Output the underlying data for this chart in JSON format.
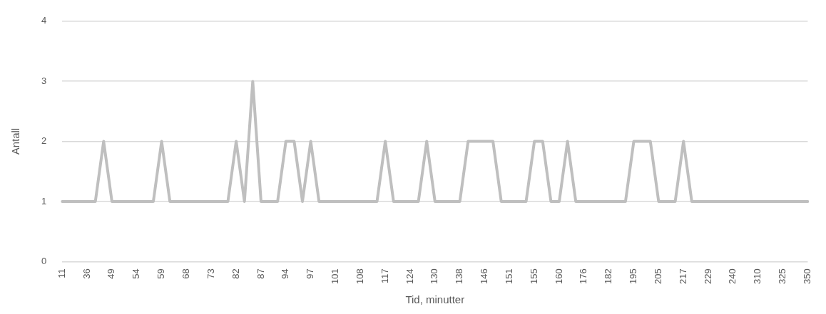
{
  "chart_data": {
    "type": "line",
    "xlabel": "Tid, minutter",
    "ylabel": "Antall",
    "categories": [
      "11",
      null,
      null,
      "36",
      null,
      null,
      "49",
      null,
      null,
      "54",
      null,
      null,
      "59",
      null,
      null,
      "68",
      null,
      null,
      "73",
      null,
      null,
      "82",
      null,
      null,
      "87",
      null,
      null,
      "94",
      null,
      null,
      "97",
      null,
      null,
      "101",
      null,
      null,
      "108",
      null,
      null,
      "117",
      null,
      null,
      "124",
      null,
      null,
      "130",
      null,
      null,
      "138",
      null,
      null,
      "146",
      null,
      null,
      "151",
      null,
      null,
      "155",
      null,
      null,
      "160",
      null,
      null,
      "176",
      null,
      null,
      "182",
      null,
      null,
      "195",
      null,
      null,
      "205",
      null,
      null,
      "217",
      null,
      null,
      "229",
      null,
      null,
      "240",
      null,
      null,
      "310",
      null,
      null,
      "325",
      null,
      null,
      "350"
    ],
    "series": [
      {
        "color": "#bfbfbf",
        "values": [
          1,
          1,
          1,
          1,
          1,
          2,
          1,
          1,
          1,
          1,
          1,
          1,
          2,
          1,
          1,
          1,
          1,
          1,
          1,
          1,
          1,
          2,
          1,
          3,
          1,
          1,
          1,
          2,
          2,
          1,
          2,
          1,
          1,
          1,
          1,
          1,
          1,
          1,
          1,
          2,
          1,
          1,
          1,
          1,
          2,
          1,
          1,
          1,
          1,
          2,
          2,
          2,
          2,
          1,
          1,
          1,
          1,
          2,
          2,
          1,
          1,
          2,
          1,
          1,
          1,
          1,
          1,
          1,
          1,
          2,
          2,
          2,
          1,
          1,
          1,
          2,
          1,
          1,
          1,
          1,
          1,
          1,
          1,
          1,
          1,
          1,
          1,
          1,
          1,
          1,
          1
        ]
      }
    ],
    "ylim": [
      0,
      4
    ],
    "yticks": [
      0,
      1,
      2,
      3,
      4
    ],
    "grid": "y",
    "legend": false,
    "marker": "none",
    "line_style": "solid"
  }
}
